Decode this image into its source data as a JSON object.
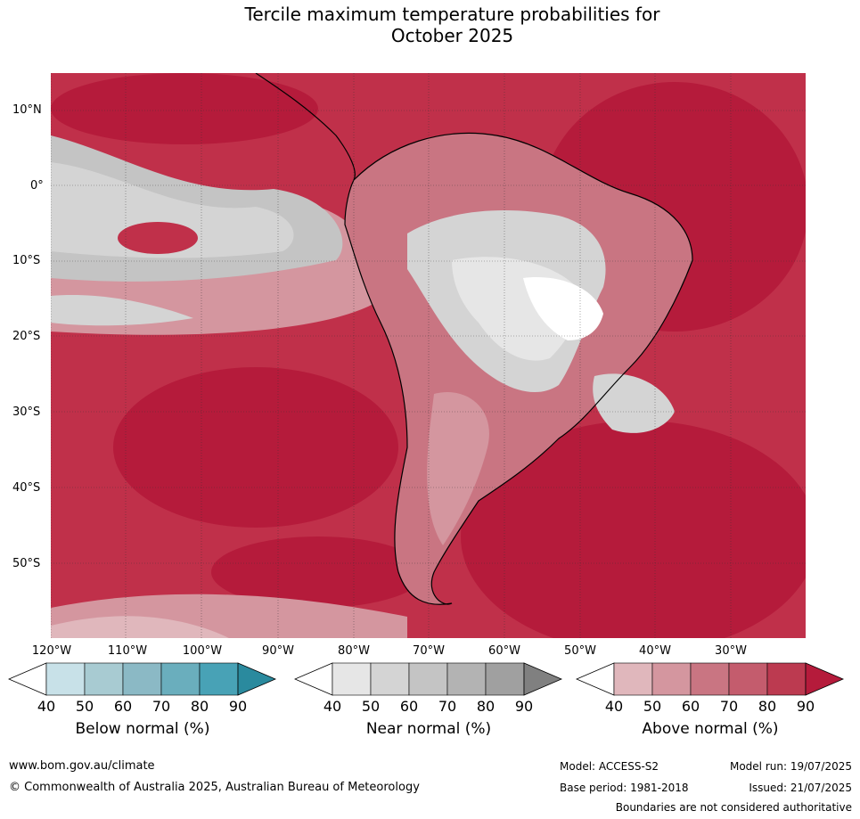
{
  "title_line1": "Tercile maximum temperature probabilities for",
  "title_line2": "October 2025",
  "lat_labels": [
    "10°N",
    "0°",
    "10°S",
    "20°S",
    "30°S",
    "40°S",
    "50°S"
  ],
  "lon_labels": [
    "120°W",
    "110°W",
    "100°W",
    "90°W",
    "80°W",
    "70°W",
    "60°W",
    "50°W",
    "40°W",
    "30°W"
  ],
  "colorbars": [
    {
      "title": "Below normal (%)",
      "ticks": [
        "40",
        "50",
        "60",
        "70",
        "80",
        "90"
      ],
      "colors": [
        "#ffffff",
        "#c8e1e8",
        "#a8cbd2",
        "#8bb9c5",
        "#6aaebd",
        "#48a2b6",
        "#2a8a9e"
      ]
    },
    {
      "title": "Near normal (%)",
      "ticks": [
        "40",
        "50",
        "60",
        "70",
        "80",
        "90"
      ],
      "colors": [
        "#ffffff",
        "#e6e6e6",
        "#d4d4d4",
        "#c4c4c4",
        "#b3b3b3",
        "#a0a0a0",
        "#808080"
      ]
    },
    {
      "title": "Above normal (%)",
      "ticks": [
        "40",
        "50",
        "60",
        "70",
        "80",
        "90"
      ],
      "colors": [
        "#ffffff",
        "#e0b7bc",
        "#d4969f",
        "#c97582",
        "#c45c6d",
        "#bc3a50",
        "#b51b3b"
      ]
    }
  ],
  "footer": {
    "url": "www.bom.gov.au/climate",
    "copyright": "© Commonwealth of Australia 2025, Australian Bureau of Meteorology",
    "model": "Model: ACCESS-S2",
    "base_period": "Base period: 1981-2018",
    "model_run": "Model run: 19/07/2025",
    "issued": "Issued: 21/07/2025",
    "disclaimer": "Boundaries are not considered authoritative"
  }
}
